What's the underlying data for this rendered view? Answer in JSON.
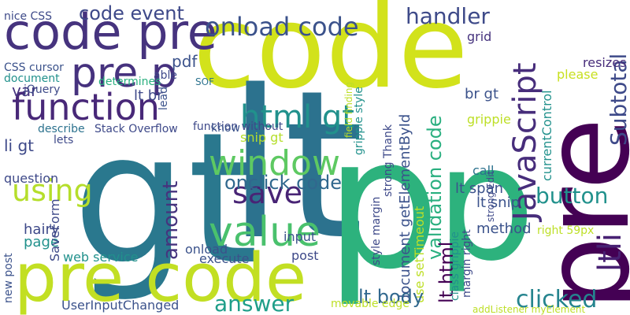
{
  "words": [
    {
      "text": "code",
      "color": "#d2e21b"
    },
    {
      "text": "gt",
      "color": "#2a788e"
    },
    {
      "text": "lt",
      "color": "#2c728e"
    },
    {
      "text": "pre",
      "color": "#440154"
    },
    {
      "text": "p",
      "color": "#2db27d"
    },
    {
      "text": "p",
      "color": "#2db27d"
    },
    {
      "text": "pre code",
      "color": "#c2df23"
    },
    {
      "text": "code pre",
      "color": "#46337e"
    },
    {
      "text": "pre p",
      "color": "#46327e"
    },
    {
      "text": "function",
      "color": "#482878"
    },
    {
      "text": "onload code",
      "color": "#3b528b"
    },
    {
      "text": "html gt",
      "color": "#21918c"
    },
    {
      "text": "window",
      "color": "#5ec962"
    },
    {
      "text": "save",
      "color": "#482475"
    },
    {
      "text": "value",
      "color": "#4ac16d"
    },
    {
      "text": "answer",
      "color": "#1f9e89"
    },
    {
      "text": "using",
      "color": "#b5de2b"
    },
    {
      "text": "JavaScript",
      "color": "#472d7b"
    },
    {
      "text": "Subtotal",
      "color": "#3e4a89"
    },
    {
      "text": "ltli",
      "color": "#482173"
    },
    {
      "text": "button",
      "color": "#21918c"
    },
    {
      "text": "clicked",
      "color": "#25848e"
    },
    {
      "text": "handler",
      "color": "#3e4a89"
    },
    {
      "text": "code event",
      "color": "#3e4989"
    },
    {
      "text": "onclick code",
      "color": "#31688e"
    },
    {
      "text": "amount",
      "color": "#46337e"
    },
    {
      "text": "validation code",
      "color": "#29af7f"
    },
    {
      "text": "lt html",
      "color": "#440154"
    },
    {
      "text": "document getElementById",
      "color": "#3b528b"
    },
    {
      "text": "use setTimeout",
      "color": "#bddf26"
    },
    {
      "text": "lt body",
      "color": "#31688e"
    },
    {
      "text": "lt span",
      "color": "#3b528b"
    },
    {
      "text": "snip gt",
      "color": "#b5de2b"
    },
    {
      "text": "lt snip",
      "color": "#3b528b"
    },
    {
      "text": "method",
      "color": "#3b528b"
    },
    {
      "text": "call",
      "color": "#2c728e"
    },
    {
      "text": "right 59px",
      "color": "#bddf26"
    },
    {
      "text": "please",
      "color": "#c8e020"
    },
    {
      "text": "resizes",
      "color": "#472c7a"
    },
    {
      "text": "grid",
      "color": "#46337e"
    },
    {
      "text": "br gt",
      "color": "#3b528b"
    },
    {
      "text": "grippie",
      "color": "#bddf26"
    },
    {
      "text": "currentControl",
      "color": "#21918c"
    },
    {
      "text": "pdf",
      "color": "#3b528b"
    },
    {
      "text": "SOF",
      "color": "#2c728e"
    },
    {
      "text": "var",
      "color": "#46337e"
    },
    {
      "text": "nice CSS",
      "color": "#3e4a89"
    },
    {
      "text": "CSS cursor",
      "color": "#3b528b"
    },
    {
      "text": "jQuery",
      "color": "#3e4a89"
    },
    {
      "text": "document",
      "color": "#21918c"
    },
    {
      "text": "lead",
      "color": "#3b528b"
    },
    {
      "text": "determines",
      "color": "#29af7f"
    },
    {
      "text": "able",
      "color": "#3e4989"
    },
    {
      "text": "lt br",
      "color": "#3e4989"
    },
    {
      "text": "function without",
      "color": "#3e4989"
    },
    {
      "text": "Stack Overflow",
      "color": "#3e4989"
    },
    {
      "text": "describe",
      "color": "#2c728e"
    },
    {
      "text": "know",
      "color": "#3b528b"
    },
    {
      "text": "li gt",
      "color": "#3e4989"
    },
    {
      "text": "lets",
      "color": "#3e4989"
    },
    {
      "text": "question",
      "color": "#3e4989"
    },
    {
      "text": "hairy",
      "color": "#3e4989"
    },
    {
      "text": "page",
      "color": "#21918c"
    },
    {
      "text": "SaveForm",
      "color": "#3e4989"
    },
    {
      "text": "web service",
      "color": "#21918c"
    },
    {
      "text": "new post",
      "color": "#3b528b"
    },
    {
      "text": "UserInputChanged",
      "color": "#3b528b"
    },
    {
      "text": "onload",
      "color": "#3b528b"
    },
    {
      "text": "execute",
      "color": "#3b528b"
    },
    {
      "text": "input",
      "color": "#3b528b"
    },
    {
      "text": "post",
      "color": "#3e4989"
    },
    {
      "text": "strong Thank",
      "color": "#3e4989"
    },
    {
      "text": "grippie style",
      "color": "#21918c"
    },
    {
      "text": "field finding",
      "color": "#bddf26"
    },
    {
      "text": "style margin",
      "color": "#3e4989"
    },
    {
      "text": "margin right",
      "color": "#3e4989"
    },
    {
      "text": "class grippie",
      "color": "#21918c"
    },
    {
      "text": "movable edge",
      "color": "#bddf26"
    },
    {
      "text": "addListener myElement",
      "color": "#bddf26"
    },
    {
      "text": "strong Edit",
      "color": "#3e4989"
    }
  ]
}
